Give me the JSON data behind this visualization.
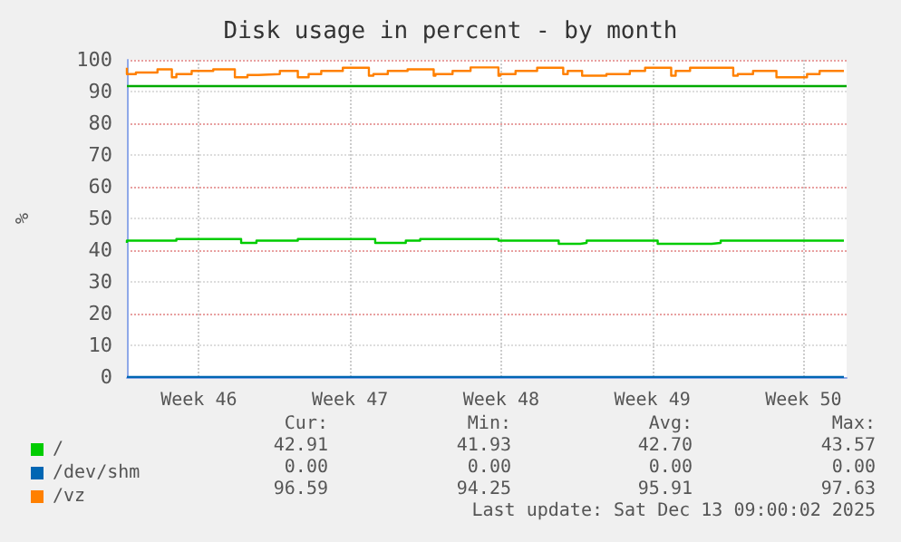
{
  "chart_data": {
    "type": "step",
    "title": "Disk usage in percent - by month",
    "ylabel": "%",
    "xlim": [
      "2025-11-10T04:00",
      "2025-12-13T12:00"
    ],
    "xticks": [
      {
        "value": "2025-11-13T12:00",
        "label": "Week 46"
      },
      {
        "value": "2025-11-20T12:00",
        "label": "Week 47"
      },
      {
        "value": "2025-11-27T12:00",
        "label": "Week 48"
      },
      {
        "value": "2025-12-04T12:00",
        "label": "Week 49"
      },
      {
        "value": "2025-12-11T12:00",
        "label": "Week 50"
      }
    ],
    "ylim": [
      0,
      100
    ],
    "yticks": [
      0,
      10,
      20,
      30,
      40,
      50,
      60,
      70,
      80,
      90,
      100
    ],
    "grid": true,
    "legend": "bottom left",
    "marker": "none",
    "series": [
      {
        "name": "/",
        "color": "#00cc00",
        "x": [
          "2025-11-10T04:00",
          "2025-11-12T11:00",
          "2025-11-15T11:00",
          "2025-11-16T04:00",
          "2025-11-18T02:00",
          "2025-11-21T16:00",
          "2025-11-23T02:00",
          "2025-11-23T18:00",
          "2025-11-27T09:00",
          "2025-11-30T04:00",
          "2025-12-01T04:00",
          "2025-12-01T11:00",
          "2025-12-04T18:00",
          "2025-12-07T06:00",
          "2025-12-07T16:00",
          "2025-12-11T02:00",
          "2025-12-13T09:00"
        ],
        "values": [
          42.3,
          43,
          43.5,
          42.3,
          43,
          43.5,
          42.3,
          43,
          43.5,
          43,
          42,
          42.3,
          43,
          42,
          42.3,
          43,
          43
        ]
      },
      {
        "name": "/dev/shm",
        "color": "#0066b3",
        "x": [
          "2025-11-10T04:00",
          "2025-12-13T09:00"
        ],
        "values": [
          0,
          0
        ]
      },
      {
        "name": "/vz",
        "color": "#ff8000",
        "x": [
          "2025-11-10T04:00",
          "2025-11-10T14:00",
          "2025-11-11T14:00",
          "2025-11-12T06:00",
          "2025-11-12T11:00",
          "2025-11-13T04:00",
          "2025-11-14T04:00",
          "2025-11-15T04:00",
          "2025-11-15T18:00",
          "2025-11-16T06:00",
          "2025-11-17T06:00",
          "2025-11-18T02:00",
          "2025-11-18T14:00",
          "2025-11-19T04:00",
          "2025-11-20T04:00",
          "2025-11-21T09:00",
          "2025-11-21T14:00",
          "2025-11-22T06:00",
          "2025-11-23T04:00",
          "2025-11-24T09:00",
          "2025-11-24T11:00",
          "2025-11-25T06:00",
          "2025-11-26T02:00",
          "2025-11-27T09:00",
          "2025-11-27T11:00",
          "2025-11-28T04:00",
          "2025-11-29T04:00",
          "2025-11-30T09:00",
          "2025-11-30T14:00",
          "2025-12-01T06:00",
          "2025-12-02T09:00",
          "2025-12-03T11:00",
          "2025-12-04T04:00",
          "2025-12-05T09:00",
          "2025-12-05T14:00",
          "2025-12-06T06:00",
          "2025-12-08T06:00",
          "2025-12-08T11:00",
          "2025-12-09T04:00",
          "2025-12-10T06:00",
          "2025-12-11T16:00",
          "2025-12-12T06:00",
          "2025-12-13T04:00",
          "2025-12-13T09:00"
        ],
        "values": [
          97.5,
          95.5,
          96,
          97,
          94.5,
          95.5,
          96.5,
          97,
          94.5,
          95.2,
          95.5,
          96.5,
          94.5,
          95.5,
          96.5,
          97.5,
          95,
          95.5,
          96.5,
          97,
          95,
          95.5,
          96.5,
          97.6,
          95,
          95.5,
          96.5,
          97.5,
          95.5,
          96.5,
          95,
          95.5,
          96.5,
          97.5,
          95,
          96.5,
          97.5,
          95,
          95.5,
          96.5,
          94.5,
          95.5,
          96.5,
          96.5
        ]
      }
    ],
    "ref_lines": [
      {
        "axis": "y",
        "value": 92,
        "color": "#00aa00"
      }
    ],
    "annotations": [
      "Cur:",
      "Min:",
      "Avg:",
      "Max:",
      "42.91",
      "41.93",
      "42.70",
      "43.57",
      "0.00",
      "0.00",
      "0.00",
      "0.00",
      "96.59",
      "94.25",
      "95.91",
      "97.63",
      "Last update: Sat Dec 13 09:00:02 2025"
    ]
  }
}
